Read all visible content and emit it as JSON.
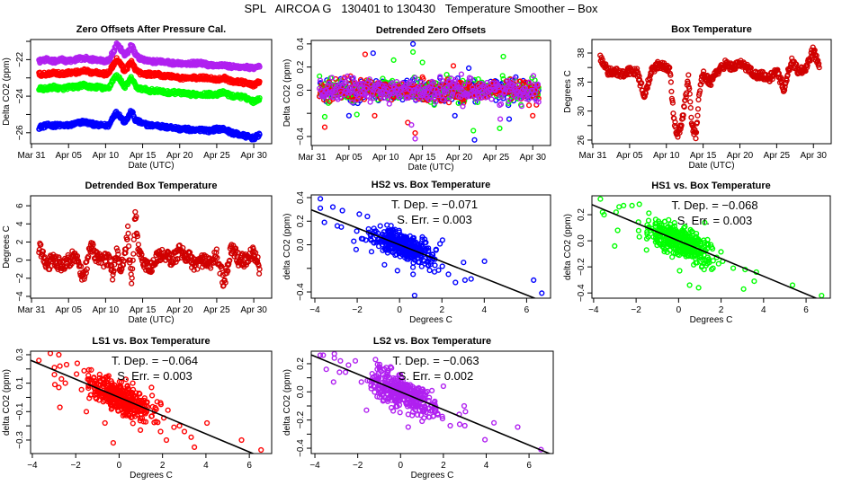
{
  "title": "SPL   AIRCOA G   130401 to 130430   Temperature Smoother – Box",
  "chart_data": [
    {
      "type": "scatter",
      "x_axis": "date",
      "title": "Zero Offsets After Pressure Cal.",
      "xlabel": "Date (UTC)",
      "ylabel": "Delta CO2 (ppm)",
      "xlim": [
        "Mar 30 21:00",
        "May 02 10:00"
      ],
      "ylim": [
        -26.6,
        -20.9
      ],
      "xticks": [
        "Mar 31",
        "Apr 05",
        "Apr 10",
        "Apr 15",
        "Apr 20",
        "Apr 25",
        "Apr 30"
      ],
      "yticks": [
        -26,
        -25,
        -24,
        -23,
        -22,
        -21
      ],
      "ytick_labels": [
        "−26",
        "",
        "−24",
        "",
        "−22",
        ""
      ],
      "x": [
        "Apr 01",
        "Apr 02",
        "Apr 03",
        "Apr 04",
        "Apr 05",
        "Apr 06",
        "Apr 07",
        "Apr 08",
        "Apr 09",
        "Apr 10",
        "Apr 10 12:00",
        "Apr 11",
        "Apr 11 12:00",
        "Apr 12",
        "Apr 12 12:00",
        "Apr 13",
        "Apr 13 12:00",
        "Apr 14",
        "Apr 14 12:00",
        "Apr 15",
        "Apr 16",
        "Apr 17",
        "Apr 18",
        "Apr 19",
        "Apr 20",
        "Apr 21",
        "Apr 22",
        "Apr 23",
        "Apr 24",
        "Apr 25",
        "Apr 26",
        "Apr 27",
        "Apr 28",
        "Apr 29",
        "Apr 30",
        "Apr 30 19:00"
      ],
      "series": [
        {
          "color": "#0000ff",
          "values": [
            -25.7,
            -25.6,
            -25.6,
            -25.6,
            -25.6,
            -25.5,
            -25.4,
            -25.5,
            -25.6,
            -25.6,
            -25.6,
            -25.1,
            -24.9,
            -25.1,
            -25.4,
            -25.2,
            -24.8,
            -25.3,
            -25.4,
            -25.5,
            -25.6,
            -25.6,
            -25.7,
            -25.7,
            -25.8,
            -25.8,
            -25.9,
            -25.8,
            -25.9,
            -25.8,
            -25.8,
            -26.0,
            -26.1,
            -26.2,
            -26.3,
            -26.1
          ]
        },
        {
          "color": "#00ff00",
          "values": [
            -23.6,
            -23.6,
            -23.5,
            -23.6,
            -23.5,
            -23.5,
            -23.4,
            -23.5,
            -23.5,
            -23.6,
            -23.5,
            -23.1,
            -22.9,
            -23.1,
            -23.5,
            -23.3,
            -23.0,
            -23.4,
            -23.6,
            -23.6,
            -23.7,
            -23.7,
            -23.8,
            -23.8,
            -23.8,
            -23.9,
            -23.9,
            -23.9,
            -23.9,
            -23.9,
            -23.8,
            -24.0,
            -24.0,
            -24.1,
            -24.3,
            -24.1
          ]
        },
        {
          "color": "#ff0000",
          "values": [
            -22.8,
            -22.8,
            -22.7,
            -22.8,
            -22.7,
            -22.7,
            -22.6,
            -22.7,
            -22.7,
            -22.8,
            -22.7,
            -22.3,
            -22.0,
            -22.2,
            -22.6,
            -22.4,
            -22.1,
            -22.5,
            -22.7,
            -22.8,
            -22.8,
            -22.8,
            -22.9,
            -22.9,
            -23.0,
            -23.0,
            -23.0,
            -23.0,
            -23.0,
            -23.1,
            -23.0,
            -23.2,
            -23.2,
            -23.3,
            -23.4,
            -23.2
          ]
        },
        {
          "color": "#b020f0",
          "values": [
            -22.1,
            -22.0,
            -22.1,
            -22.0,
            -22.1,
            -22.0,
            -21.9,
            -22.0,
            -22.0,
            -22.1,
            -22.0,
            -21.6,
            -21.2,
            -21.4,
            -21.8,
            -21.6,
            -21.2,
            -21.7,
            -21.9,
            -22.0,
            -22.1,
            -22.1,
            -22.1,
            -22.2,
            -22.2,
            -22.2,
            -22.2,
            -22.2,
            -22.3,
            -22.3,
            -22.3,
            -22.4,
            -22.4,
            -22.4,
            -22.5,
            -22.4
          ]
        }
      ]
    },
    {
      "type": "scatter",
      "x_axis": "date",
      "title": "Detrended Zero Offsets",
      "xlabel": "Date (UTC)",
      "ylabel": "Delta CO2 (ppm)",
      "xlim": [
        "Mar 30 21:00",
        "May 02 10:00"
      ],
      "ylim": [
        -0.478,
        0.43
      ],
      "xticks": [
        "Mar 31",
        "Apr 05",
        "Apr 10",
        "Apr 15",
        "Apr 20",
        "Apr 25",
        "Apr 30"
      ],
      "yticks": [
        -0.4,
        -0.2,
        0,
        0.2,
        0.4
      ],
      "ytick_labels": [
        "−0.4",
        "",
        "0.0",
        "0.2",
        "0.4"
      ],
      "x_range": [
        "Apr 01",
        "Apr 30 19:00"
      ],
      "center": 0,
      "series": [
        {
          "color": "#0000ff",
          "x": [
            "Apr 13 17:00",
            "Apr 22 02:00",
            "Apr 05 00:00",
            "Apr 08 07:00",
            "Apr 21 07:00",
            "Apr 26 19:00",
            "Apr 19 10:00"
          ],
          "y": [
            0.4,
            -0.43,
            -0.22,
            0.32,
            0.19,
            -0.25,
            -0.22
          ]
        },
        {
          "color": "#00ff00",
          "x": [
            "Apr 01 17:00",
            "Apr 21 22:00",
            "Apr 25 12:00",
            "Apr 11 02:00",
            "Apr 26 00:00",
            "Apr 13 17:00",
            "Apr 06 02:00",
            "Apr 15 00:00"
          ],
          "y": [
            -0.23,
            -0.35,
            -0.33,
            0.26,
            0.29,
            0.33,
            -0.21,
            0.24
          ]
        },
        {
          "color": "#ff0000",
          "x": [
            "Apr 01 17:00",
            "Apr 14 00:00",
            "Apr 13 00:00",
            "Apr 07 05:00",
            "Apr 19 05:00",
            "Apr 08 12:00",
            "Apr 30 00:00"
          ],
          "y": [
            -0.32,
            -0.37,
            -0.28,
            0.31,
            0.21,
            -0.22,
            -0.22
          ]
        },
        {
          "color": "#b020f0",
          "x": [
            "Apr 14 00:00",
            "Apr 25 14:00",
            "Apr 13 12:00"
          ],
          "y": [
            -0.42,
            -0.25,
            -0.3
          ]
        }
      ]
    },
    {
      "type": "scatter",
      "x_axis": "date",
      "title": "Box Temperature",
      "xlabel": "Date (UTC)",
      "ylabel": "Degrees C",
      "xlim": [
        "Mar 30 21:00",
        "May 02 10:00"
      ],
      "ylim": [
        25.5,
        39.86
      ],
      "xticks": [
        "Mar 31",
        "Apr 05",
        "Apr 10",
        "Apr 15",
        "Apr 20",
        "Apr 25",
        "Apr 30"
      ],
      "yticks": [
        26,
        28,
        30,
        32,
        34,
        36,
        38
      ],
      "ytick_labels": [
        "26",
        "",
        "30",
        "",
        "34",
        "",
        "38"
      ],
      "x": [
        "Apr 01",
        "Apr 02",
        "Apr 03",
        "Apr 04",
        "Apr 05",
        "Apr 06",
        "Apr 07",
        "Apr 08",
        "Apr 09",
        "Apr 10",
        "Apr 10 12:00",
        "Apr 11",
        "Apr 11 12:00",
        "Apr 12",
        "Apr 12 12:00",
        "Apr 13",
        "Apr 13 12:00",
        "Apr 14",
        "Apr 14 12:00",
        "Apr 15",
        "Apr 16",
        "Apr 17",
        "Apr 18",
        "Apr 19",
        "Apr 20",
        "Apr 21",
        "Apr 22",
        "Apr 23",
        "Apr 24",
        "Apr 25",
        "Apr 26",
        "Apr 27",
        "Apr 28",
        "Apr 29",
        "Apr 30",
        "Apr 30 19:00"
      ],
      "series": [
        {
          "color": "#d00000",
          "values": [
            37.5,
            35.5,
            35.5,
            35,
            35.5,
            35.5,
            32,
            35.5,
            36.5,
            36,
            35.5,
            29,
            26.5,
            28,
            31,
            34.5,
            28,
            26.5,
            33,
            35,
            34,
            35.5,
            36.5,
            36,
            36.5,
            36,
            35,
            35,
            34.5,
            35.5,
            33,
            37,
            35.5,
            36,
            38.5,
            36
          ]
        }
      ]
    },
    {
      "type": "scatter",
      "x_axis": "date",
      "title": "Detrended Box Temperature",
      "xlabel": "Date (UTC)",
      "ylabel": "Degrees C",
      "xlim": [
        "Mar 30 21:00",
        "May 02 10:00"
      ],
      "ylim": [
        -4.2,
        7.1
      ],
      "xticks": [
        "Mar 31",
        "Apr 05",
        "Apr 10",
        "Apr 15",
        "Apr 20",
        "Apr 25",
        "Apr 30"
      ],
      "yticks": [
        -4,
        -2,
        0,
        2,
        4,
        6
      ],
      "ytick_labels": [
        "−4",
        "−2",
        "0",
        "2",
        "4",
        "6"
      ],
      "x": [
        "Apr 01",
        "Apr 02",
        "Apr 03",
        "Apr 04",
        "Apr 05",
        "Apr 06",
        "Apr 07",
        "Apr 08",
        "Apr 09",
        "Apr 10",
        "Apr 10 12:00",
        "Apr 11",
        "Apr 11 12:00",
        "Apr 12",
        "Apr 12 12:00",
        "Apr 13",
        "Apr 13 12:00",
        "Apr 14",
        "Apr 14 12:00",
        "Apr 15",
        "Apr 16",
        "Apr 17",
        "Apr 18",
        "Apr 19",
        "Apr 20",
        "Apr 21",
        "Apr 22",
        "Apr 23",
        "Apr 24",
        "Apr 25",
        "Apr 26",
        "Apr 27",
        "Apr 28",
        "Apr 29",
        "Apr 30",
        "Apr 30 19:00"
      ],
      "series": [
        {
          "color": "#d00000",
          "values": [
            1.5,
            -0.5,
            0,
            -0.5,
            0,
            0.5,
            -2,
            1.5,
            0,
            0,
            0,
            -2,
            1,
            -1,
            0,
            3,
            -3,
            5.5,
            0.5,
            0,
            -1,
            0.5,
            0.5,
            0,
            1,
            0.5,
            -0.5,
            0,
            -0.5,
            0.5,
            -2.5,
            1.5,
            0,
            0,
            1,
            -1
          ]
        }
      ]
    },
    {
      "type": "scatter",
      "title": "HS2 vs. Box Temperature",
      "xlabel": "Degrees C",
      "ylabel": "delta CO2 (ppm)",
      "xlim": [
        -4.17,
        7.13
      ],
      "ylim": [
        -0.453,
        0.423
      ],
      "xticks": [
        -4,
        -2,
        0,
        2,
        4,
        6
      ],
      "xtick_labels": [
        "−4",
        "−2",
        "0",
        "2",
        "4",
        "6"
      ],
      "yticks": [
        -0.4,
        -0.2,
        0,
        0.2,
        0.4
      ],
      "ytick_labels": [
        "−0.4",
        "",
        "0.0",
        "0.2",
        "0.4"
      ],
      "color": "#0000ff",
      "fit": {
        "slope": -0.071,
        "intercept": 0
      },
      "annotations": [
        "T. Dep. =  −0.071",
        "S. Err. =  0.003"
      ],
      "points": {
        "x": [
          -3.74,
          -3.74,
          -3.15,
          -2.7,
          -3.55,
          -2.94,
          -2.75,
          -2.16,
          -2.05,
          -0.71,
          -0.1,
          0.64,
          0.71,
          1.65,
          2.03,
          2.31,
          2.64,
          3.02,
          3.09,
          3.38,
          4.01,
          6.33,
          6.72,
          -1.9,
          -1.52,
          -1.73
        ],
        "y": [
          0.39,
          0.31,
          0.32,
          0.29,
          0.19,
          0.16,
          0.15,
          0.03,
          -0.04,
          -0.17,
          -0.22,
          -0.25,
          -0.43,
          -0.23,
          0.04,
          -0.25,
          -0.32,
          -0.15,
          -0.3,
          -0.29,
          -0.14,
          -0.3,
          -0.41,
          0.26,
          0.24,
          0.05
        ]
      }
    },
    {
      "type": "scatter",
      "title": "HS1 vs. Box Temperature",
      "xlabel": "Degrees C",
      "ylabel": "delta CO2 (ppm)",
      "xlim": [
        -4.08,
        7.14
      ],
      "ylim": [
        -0.44,
        0.345
      ],
      "xticks": [
        -4,
        -2,
        0,
        2,
        4,
        6
      ],
      "xtick_labels": [
        "−4",
        "−2",
        "0",
        "2",
        "4",
        "6"
      ],
      "yticks": [
        -0.4,
        -0.2,
        0,
        0.2
      ],
      "ytick_labels": [
        "−0.4",
        "−0.2",
        "0.0",
        "0.2"
      ],
      "color": "#00ff00",
      "fit": {
        "slope": -0.068,
        "intercept": 0
      },
      "annotations": [
        "T. Dep. =  −0.068",
        "S. Err. =  0.003"
      ],
      "points": {
        "x": [
          -3.68,
          -3.58,
          -3.51,
          -2.94,
          -2.8,
          -2.59,
          -2.19,
          -1.85,
          -2.87,
          -3.01,
          -1.51,
          -1.85,
          0.05,
          0.52,
          0.94,
          1.2,
          1.62,
          2.57,
          3.06,
          3.13,
          3.56,
          3.66,
          5.36,
          6.73,
          1.23
        ],
        "y": [
          0.32,
          0.22,
          0.2,
          0.22,
          0.26,
          0.27,
          0.27,
          0.28,
          0.08,
          -0.04,
          -0.07,
          0.03,
          -0.23,
          -0.34,
          -0.36,
          -0.22,
          -0.21,
          -0.21,
          -0.37,
          -0.22,
          -0.31,
          -0.24,
          -0.34,
          -0.42,
          0.14
        ]
      }
    },
    {
      "type": "scatter",
      "title": "LS1 vs. Box Temperature",
      "xlabel": "Degrees C",
      "ylabel": "delta CO2 (ppm)",
      "xlim": [
        -4.08,
        7.03
      ],
      "ylim": [
        -0.395,
        0.325
      ],
      "xticks": [
        -4,
        -2,
        0,
        2,
        4,
        6
      ],
      "xtick_labels": [
        "−4",
        "−2",
        "0",
        "2",
        "4",
        "6"
      ],
      "yticks": [
        -0.3,
        -0.2,
        -0.1,
        0,
        0.1,
        0.2,
        0.3
      ],
      "ytick_labels": [
        "−0.3",
        "",
        "−0.1",
        "",
        "0.1",
        "",
        "0.3"
      ],
      "color": "#ff0000",
      "fit": {
        "slope": -0.064,
        "intercept": 0
      },
      "annotations": [
        "T. Dep. =  −0.064",
        "S. Err. =  0.003"
      ],
      "points": {
        "x": [
          -3.7,
          -3.17,
          -2.78,
          -2.98,
          -2.98,
          -2.96,
          -2.78,
          -2.73,
          -2.66,
          -2.48,
          -2.42,
          -2.73,
          -1.93,
          -1.51,
          -0.65,
          -0.27,
          0.98,
          1.49,
          1.7,
          1.91,
          2.18,
          2.53,
          2.78,
          3.01,
          3.32,
          3.47,
          4.05,
          5.64,
          6.54,
          2.25
        ],
        "y": [
          0.26,
          0.31,
          0.3,
          0.21,
          0.16,
          0.09,
          0.07,
          0.22,
          0.13,
          0.1,
          0.23,
          -0.07,
          0.24,
          -0.1,
          -0.18,
          -0.32,
          -0.23,
          0.07,
          -0.17,
          -0.24,
          -0.3,
          -0.21,
          -0.2,
          -0.24,
          -0.28,
          -0.35,
          -0.18,
          -0.3,
          -0.37,
          -0.09
        ]
      }
    },
    {
      "type": "scatter",
      "title": "LS2 vs. Box Temperature",
      "xlabel": "Degrees C",
      "ylabel": "delta CO2 (ppm)",
      "xlim": [
        -4.17,
        7.13
      ],
      "ylim": [
        -0.438,
        0.289
      ],
      "xticks": [
        -4,
        -2,
        0,
        2,
        4,
        6
      ],
      "xtick_labels": [
        "−4",
        "−2",
        "0",
        "2",
        "4",
        "6"
      ],
      "yticks": [
        -0.4,
        -0.3,
        -0.2,
        -0.1,
        0,
        0.1,
        0.2
      ],
      "ytick_labels": [
        "−0.4",
        "",
        "−0.2",
        "",
        "0.0",
        "",
        "0.2"
      ],
      "color": "#b020f0",
      "fit": {
        "slope": -0.063,
        "intercept": 0
      },
      "annotations": [
        "T. Dep. =  −0.063",
        "S. Err. =  0.002"
      ],
      "points": {
        "x": [
          -3.75,
          -3.61,
          -3.09,
          -3.09,
          -3.47,
          -3.13,
          -2.81,
          -2.85,
          -2.43,
          -2.57,
          -2.11,
          -1.83,
          -1.59,
          -1.17,
          0.36,
          0.36,
          2.0,
          1.96,
          2.32,
          2.74,
          2.97,
          3.03,
          3.0,
          2.76,
          3.94,
          4.36,
          5.47,
          6.56,
          -0.99
        ],
        "y": [
          0.26,
          0.26,
          0.27,
          0.24,
          0.16,
          0.07,
          0.22,
          0.14,
          0.19,
          0.14,
          0.22,
          0.07,
          -0.13,
          0.23,
          -0.16,
          -0.25,
          0.04,
          -0.19,
          -0.24,
          -0.16,
          -0.1,
          -0.14,
          -0.24,
          -0.23,
          -0.34,
          -0.22,
          -0.25,
          -0.41,
          0.17
        ]
      }
    }
  ]
}
